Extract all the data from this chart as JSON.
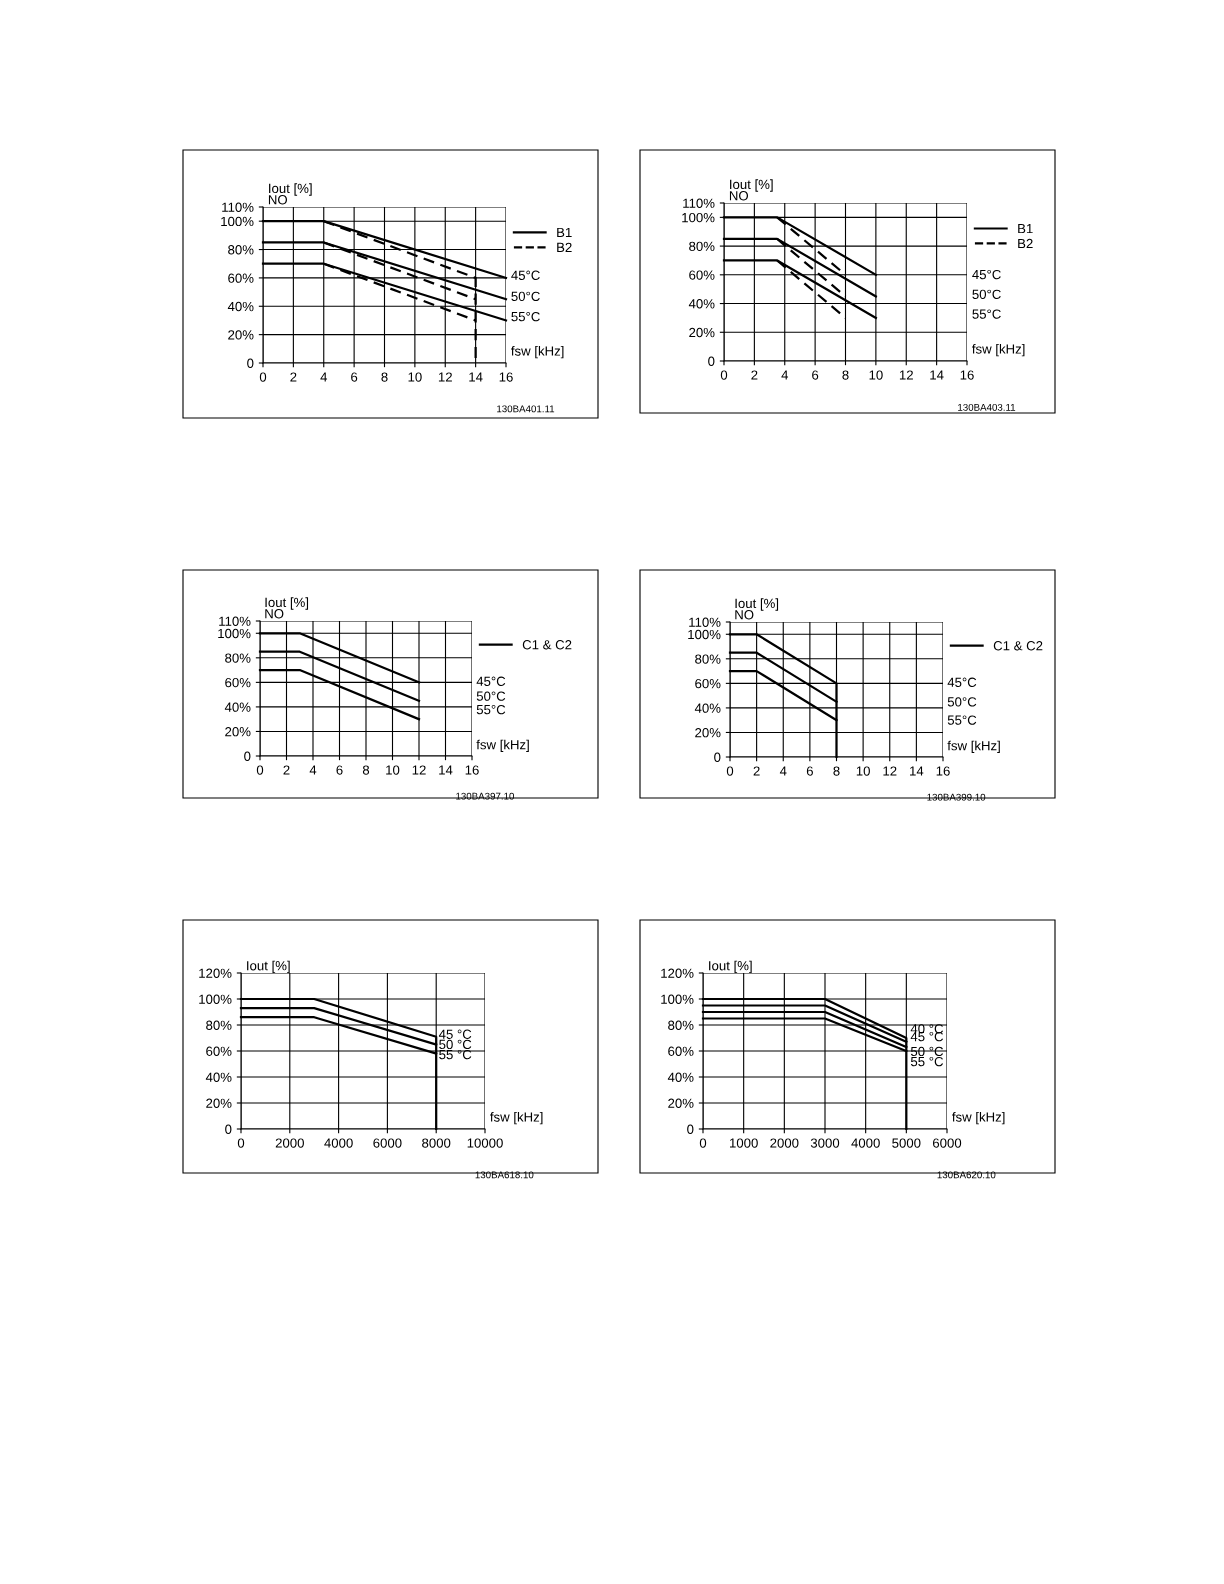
{
  "chart_data": [
    {
      "type": "line",
      "xlabel": "fsw [kHz]",
      "ylabel": "Iout [%]\nNO",
      "xlim": [
        0,
        16
      ],
      "xticks": [
        0,
        2,
        4,
        6,
        8,
        10,
        12,
        14,
        16
      ],
      "ylim": [
        0,
        110
      ],
      "yticks": [
        0,
        {
          "value": 20,
          "label": "20%"
        },
        {
          "value": 40,
          "label": "40%"
        },
        {
          "value": 60,
          "label": "60%"
        },
        {
          "value": 80,
          "label": "80%"
        },
        {
          "value": 100,
          "label": "100%"
        },
        {
          "value": 110,
          "label": "110%"
        }
      ],
      "grid": true,
      "legend": "right",
      "series": [
        {
          "name": "B1",
          "color": "#000000",
          "line_style": "solid",
          "x": [
            0,
            4,
            16
          ],
          "values": [
            100,
            100,
            60
          ]
        },
        {
          "color": "#000000",
          "line_style": "solid",
          "x": [
            0,
            4,
            16
          ],
          "values": [
            85,
            85,
            45
          ]
        },
        {
          "color": "#000000",
          "line_style": "solid",
          "x": [
            0,
            4,
            16
          ],
          "values": [
            70,
            70,
            30
          ]
        },
        {
          "name": "B2",
          "color": "#000000",
          "line_style": "dashed",
          "x": [
            4,
            14,
            14
          ],
          "values": [
            100,
            60,
            0
          ]
        },
        {
          "color": "#000000",
          "line_style": "dashed",
          "x": [
            4,
            14
          ],
          "values": [
            85,
            45
          ]
        },
        {
          "color": "#000000",
          "line_style": "dashed",
          "x": [
            4,
            14
          ],
          "values": [
            70,
            30
          ]
        }
      ],
      "annotations": [
        "45°C",
        "50°C",
        "55°C",
        "130BA401.11"
      ]
    },
    {
      "type": "line",
      "xlabel": "fsw [kHz]",
      "ylabel": "Iout [%]\nNO",
      "xlim": [
        0,
        16
      ],
      "xticks": [
        0,
        2,
        4,
        6,
        8,
        10,
        12,
        14,
        16
      ],
      "ylim": [
        0,
        110
      ],
      "yticks": [
        0,
        {
          "value": 20,
          "label": "20%"
        },
        {
          "value": 40,
          "label": "40%"
        },
        {
          "value": 60,
          "label": "60%"
        },
        {
          "value": 80,
          "label": "80%"
        },
        {
          "value": 100,
          "label": "100%"
        },
        {
          "value": 110,
          "label": "110%"
        }
      ],
      "grid": true,
      "legend": "right",
      "series": [
        {
          "name": "B1",
          "color": "#000000",
          "line_style": "solid",
          "x": [
            0,
            3.5,
            10
          ],
          "values": [
            100,
            100,
            60
          ]
        },
        {
          "color": "#000000",
          "line_style": "solid",
          "x": [
            0,
            3.5,
            10
          ],
          "values": [
            85,
            85,
            45
          ]
        },
        {
          "color": "#000000",
          "line_style": "solid",
          "x": [
            0,
            3.5,
            10
          ],
          "values": [
            70,
            70,
            30
          ]
        },
        {
          "name": "B2",
          "color": "#000000",
          "line_style": "dashed",
          "x": [
            3.5,
            8
          ],
          "values": [
            100,
            60
          ]
        },
        {
          "color": "#000000",
          "line_style": "dashed",
          "x": [
            3.5,
            8
          ],
          "values": [
            85,
            45
          ]
        },
        {
          "color": "#000000",
          "line_style": "dashed",
          "x": [
            3.5,
            8
          ],
          "values": [
            70,
            30
          ]
        }
      ],
      "annotations": [
        "45°C",
        "50°C",
        "55°C",
        "130BA403.11"
      ]
    },
    {
      "type": "line",
      "xlabel": "fsw [kHz]",
      "ylabel": "Iout [%]\nNO",
      "xlim": [
        0,
        16
      ],
      "xticks": [
        0,
        2,
        4,
        6,
        8,
        10,
        12,
        14,
        16
      ],
      "ylim": [
        0,
        110
      ],
      "yticks": [
        0,
        {
          "value": 20,
          "label": "20%"
        },
        {
          "value": 40,
          "label": "40%"
        },
        {
          "value": 60,
          "label": "60%"
        },
        {
          "value": 80,
          "label": "80%"
        },
        {
          "value": 100,
          "label": "100%"
        },
        {
          "value": 110,
          "label": "110%"
        }
      ],
      "grid": true,
      "legend": "right",
      "series": [
        {
          "name": "C1 & C2",
          "color": "#000000",
          "line_style": "solid",
          "x": [
            0,
            3,
            12
          ],
          "values": [
            100,
            100,
            60
          ]
        },
        {
          "color": "#000000",
          "line_style": "solid",
          "x": [
            0,
            3,
            12
          ],
          "values": [
            85,
            85,
            45
          ]
        },
        {
          "color": "#000000",
          "line_style": "solid",
          "x": [
            0,
            3,
            12
          ],
          "values": [
            70,
            70,
            30
          ]
        }
      ],
      "annotations": [
        "45°C",
        "50°C",
        "55°C",
        "130BA397.10"
      ]
    },
    {
      "type": "line",
      "xlabel": "fsw [kHz]",
      "ylabel": "Iout [%]\nNO",
      "xlim": [
        0,
        16
      ],
      "xticks": [
        0,
        2,
        4,
        6,
        8,
        10,
        12,
        14,
        16
      ],
      "ylim": [
        0,
        110
      ],
      "yticks": [
        0,
        {
          "value": 20,
          "label": "20%"
        },
        {
          "value": 40,
          "label": "40%"
        },
        {
          "value": 60,
          "label": "60%"
        },
        {
          "value": 80,
          "label": "80%"
        },
        {
          "value": 100,
          "label": "100%"
        },
        {
          "value": 110,
          "label": "110%"
        }
      ],
      "grid": true,
      "legend": "right",
      "series": [
        {
          "name": "C1 & C2",
          "color": "#000000",
          "line_style": "solid",
          "x": [
            0,
            2,
            8,
            8
          ],
          "values": [
            100,
            100,
            60,
            0
          ]
        },
        {
          "color": "#000000",
          "line_style": "solid",
          "x": [
            0,
            2,
            8
          ],
          "values": [
            85,
            85,
            45
          ]
        },
        {
          "color": "#000000",
          "line_style": "solid",
          "x": [
            0,
            2,
            8
          ],
          "values": [
            70,
            70,
            30
          ]
        }
      ],
      "annotations": [
        "45°C",
        "50°C",
        "55°C",
        "130BA399.10"
      ]
    },
    {
      "type": "line",
      "xlabel": "fsw [kHz]",
      "ylabel": "Iout [%]",
      "xlim": [
        0,
        10000
      ],
      "xticks": [
        0,
        2000,
        4000,
        6000,
        8000,
        10000
      ],
      "ylim": [
        0,
        120
      ],
      "yticks": [
        0,
        {
          "value": 20,
          "label": "20%"
        },
        {
          "value": 40,
          "label": "40%"
        },
        {
          "value": 60,
          "label": "60%"
        },
        {
          "value": 80,
          "label": "80%"
        },
        {
          "value": 100,
          "label": "100%"
        },
        {
          "value": 120,
          "label": "120%"
        }
      ],
      "grid": true,
      "series": [
        {
          "color": "#000000",
          "line_style": "solid",
          "x": [
            0,
            3000,
            8000,
            8000
          ],
          "values": [
            100,
            100,
            71,
            0
          ]
        },
        {
          "color": "#000000",
          "line_style": "solid",
          "x": [
            0,
            3000,
            8000
          ],
          "values": [
            93,
            93,
            65
          ]
        },
        {
          "color": "#000000",
          "line_style": "solid",
          "x": [
            0,
            3000,
            8000
          ],
          "values": [
            86,
            86,
            58
          ]
        }
      ],
      "annotations": [
        "45 °C",
        "50 °C",
        "55 °C",
        "130BA618.10"
      ]
    },
    {
      "type": "line",
      "xlabel": "fsw [kHz]",
      "ylabel": "Iout [%]",
      "xlim": [
        0,
        6000
      ],
      "xticks": [
        0,
        1000,
        2000,
        3000,
        4000,
        5000,
        6000
      ],
      "ylim": [
        0,
        120
      ],
      "yticks": [
        0,
        {
          "value": 20,
          "label": "20%"
        },
        {
          "value": 40,
          "label": "40%"
        },
        {
          "value": 60,
          "label": "60%"
        },
        {
          "value": 80,
          "label": "80%"
        },
        {
          "value": 100,
          "label": "100%"
        },
        {
          "value": 120,
          "label": "120%"
        }
      ],
      "grid": true,
      "series": [
        {
          "color": "#000000",
          "line_style": "solid",
          "x": [
            0,
            3000,
            5000,
            5000
          ],
          "values": [
            100,
            100,
            70,
            0
          ]
        },
        {
          "color": "#000000",
          "line_style": "solid",
          "x": [
            0,
            3000,
            5000
          ],
          "values": [
            95,
            95,
            67
          ]
        },
        {
          "color": "#000000",
          "line_style": "solid",
          "x": [
            0,
            3000,
            5000
          ],
          "values": [
            90,
            90,
            63
          ]
        },
        {
          "color": "#000000",
          "line_style": "solid",
          "x": [
            0,
            3000,
            5000
          ],
          "values": [
            85,
            85,
            60
          ]
        }
      ],
      "annotations": [
        "40 °C",
        "45 °C",
        "50 °C",
        "55 °C",
        "130BA620.10"
      ]
    }
  ]
}
